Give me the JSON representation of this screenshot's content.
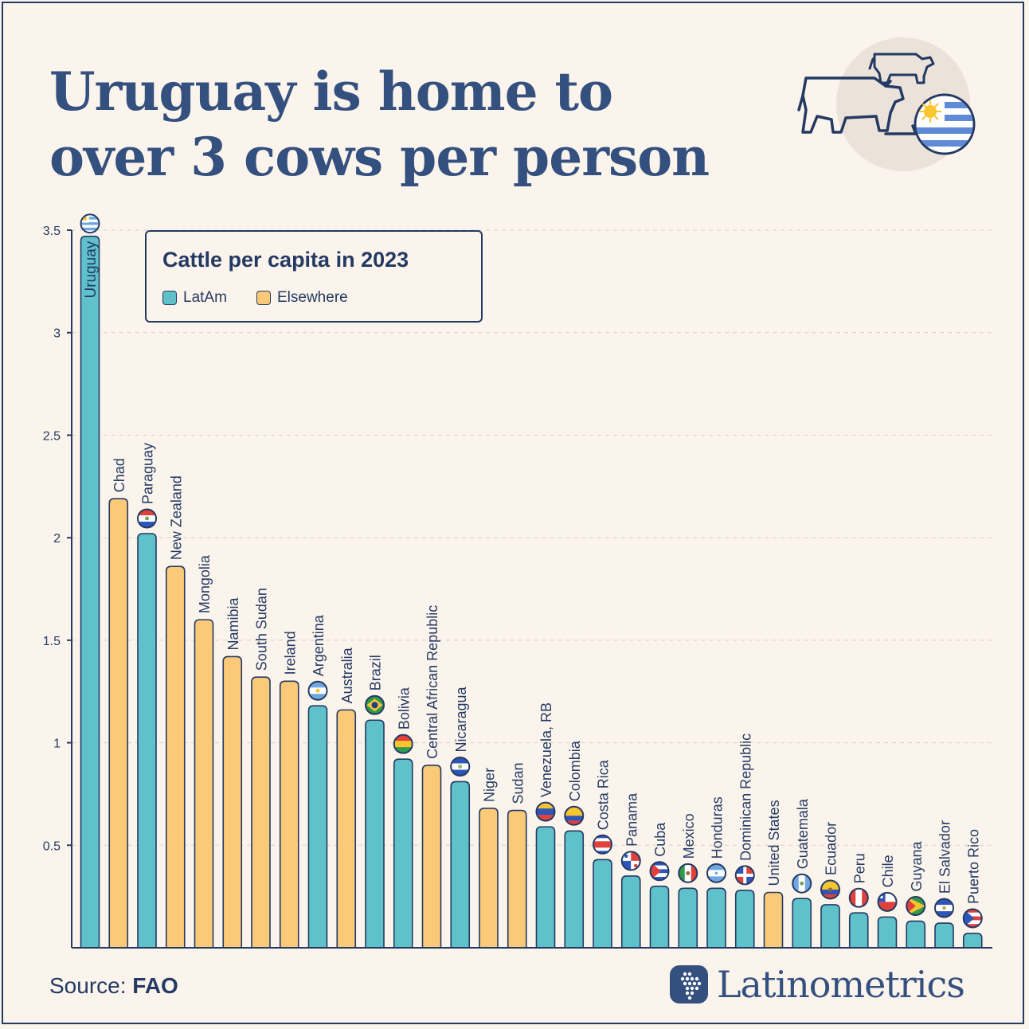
{
  "title": {
    "line1": "Uruguay is home to",
    "line2": "over 3 cows per person"
  },
  "legend": {
    "title": "Cattle per capita in 2023",
    "items": [
      {
        "label": "LatAm",
        "color": "#5fc2cb"
      },
      {
        "label": "Elsewhere",
        "color": "#fbca78"
      }
    ]
  },
  "footer": {
    "source_label": "Source:",
    "source_value": "FAO",
    "brand": "Latinometrics"
  },
  "colors": {
    "background": "#fbf4ec",
    "navy": "#243a63",
    "title": "#34507e",
    "latam": "#5fc2cb",
    "elsewhere": "#fbca78",
    "grid": "#d9cfc4"
  },
  "chart_data": {
    "type": "bar",
    "title": "Cattle per capita in 2023",
    "xlabel": "",
    "ylabel": "",
    "ylim": [
      0,
      3.5
    ],
    "yticks": [
      0.5,
      1,
      1.5,
      2,
      2.5,
      3,
      3.5
    ],
    "ytick_labels": [
      "0.5",
      "1",
      "1.5",
      "2",
      "2.5",
      "3",
      "3.5"
    ],
    "grid": true,
    "legend_position": "top-left",
    "series": [
      {
        "name": "LatAm",
        "color": "#5fc2cb"
      },
      {
        "name": "Elsewhere",
        "color": "#fbca78"
      }
    ],
    "bars": [
      {
        "label": "Uruguay",
        "value": 3.47,
        "group": "LatAm",
        "flag": "uruguay"
      },
      {
        "label": "Chad",
        "value": 2.19,
        "group": "Elsewhere"
      },
      {
        "label": "Paraguay",
        "value": 2.02,
        "group": "LatAm",
        "flag": "paraguay"
      },
      {
        "label": "New Zealand",
        "value": 1.86,
        "group": "Elsewhere"
      },
      {
        "label": "Mongolia",
        "value": 1.6,
        "group": "Elsewhere"
      },
      {
        "label": "Namibia",
        "value": 1.42,
        "group": "Elsewhere"
      },
      {
        "label": "South Sudan",
        "value": 1.32,
        "group": "Elsewhere"
      },
      {
        "label": "Ireland",
        "value": 1.3,
        "group": "Elsewhere"
      },
      {
        "label": "Argentina",
        "value": 1.18,
        "group": "LatAm",
        "flag": "argentina"
      },
      {
        "label": "Australia",
        "value": 1.16,
        "group": "Elsewhere"
      },
      {
        "label": "Brazil",
        "value": 1.11,
        "group": "LatAm",
        "flag": "brazil"
      },
      {
        "label": "Bolivia",
        "value": 0.92,
        "group": "LatAm",
        "flag": "bolivia"
      },
      {
        "label": "Central African Republic",
        "value": 0.89,
        "group": "Elsewhere"
      },
      {
        "label": "Nicaragua",
        "value": 0.81,
        "group": "LatAm",
        "flag": "nicaragua"
      },
      {
        "label": "Niger",
        "value": 0.68,
        "group": "Elsewhere"
      },
      {
        "label": "Sudan",
        "value": 0.67,
        "group": "Elsewhere"
      },
      {
        "label": "Venezuela, RB",
        "value": 0.59,
        "group": "LatAm",
        "flag": "venezuela"
      },
      {
        "label": "Colombia",
        "value": 0.57,
        "group": "LatAm",
        "flag": "colombia"
      },
      {
        "label": "Costa Rica",
        "value": 0.43,
        "group": "LatAm",
        "flag": "costarica"
      },
      {
        "label": "Panama",
        "value": 0.35,
        "group": "LatAm",
        "flag": "panama"
      },
      {
        "label": "Cuba",
        "value": 0.3,
        "group": "LatAm",
        "flag": "cuba"
      },
      {
        "label": "Mexico",
        "value": 0.29,
        "group": "LatAm",
        "flag": "mexico"
      },
      {
        "label": "Honduras",
        "value": 0.29,
        "group": "LatAm",
        "flag": "honduras"
      },
      {
        "label": "Dominican Republic",
        "value": 0.28,
        "group": "LatAm",
        "flag": "dominican"
      },
      {
        "label": "United States",
        "value": 0.27,
        "group": "Elsewhere"
      },
      {
        "label": "Guatemala",
        "value": 0.24,
        "group": "LatAm",
        "flag": "guatemala"
      },
      {
        "label": "Ecuador",
        "value": 0.21,
        "group": "LatAm",
        "flag": "ecuador"
      },
      {
        "label": "Peru",
        "value": 0.17,
        "group": "LatAm",
        "flag": "peru"
      },
      {
        "label": "Chile",
        "value": 0.15,
        "group": "LatAm",
        "flag": "chile"
      },
      {
        "label": "Guyana",
        "value": 0.13,
        "group": "LatAm",
        "flag": "guyana"
      },
      {
        "label": "El Salvador",
        "value": 0.12,
        "group": "LatAm",
        "flag": "elsalvador"
      },
      {
        "label": "Puerto Rico",
        "value": 0.07,
        "group": "LatAm",
        "flag": "puertorico"
      }
    ]
  }
}
